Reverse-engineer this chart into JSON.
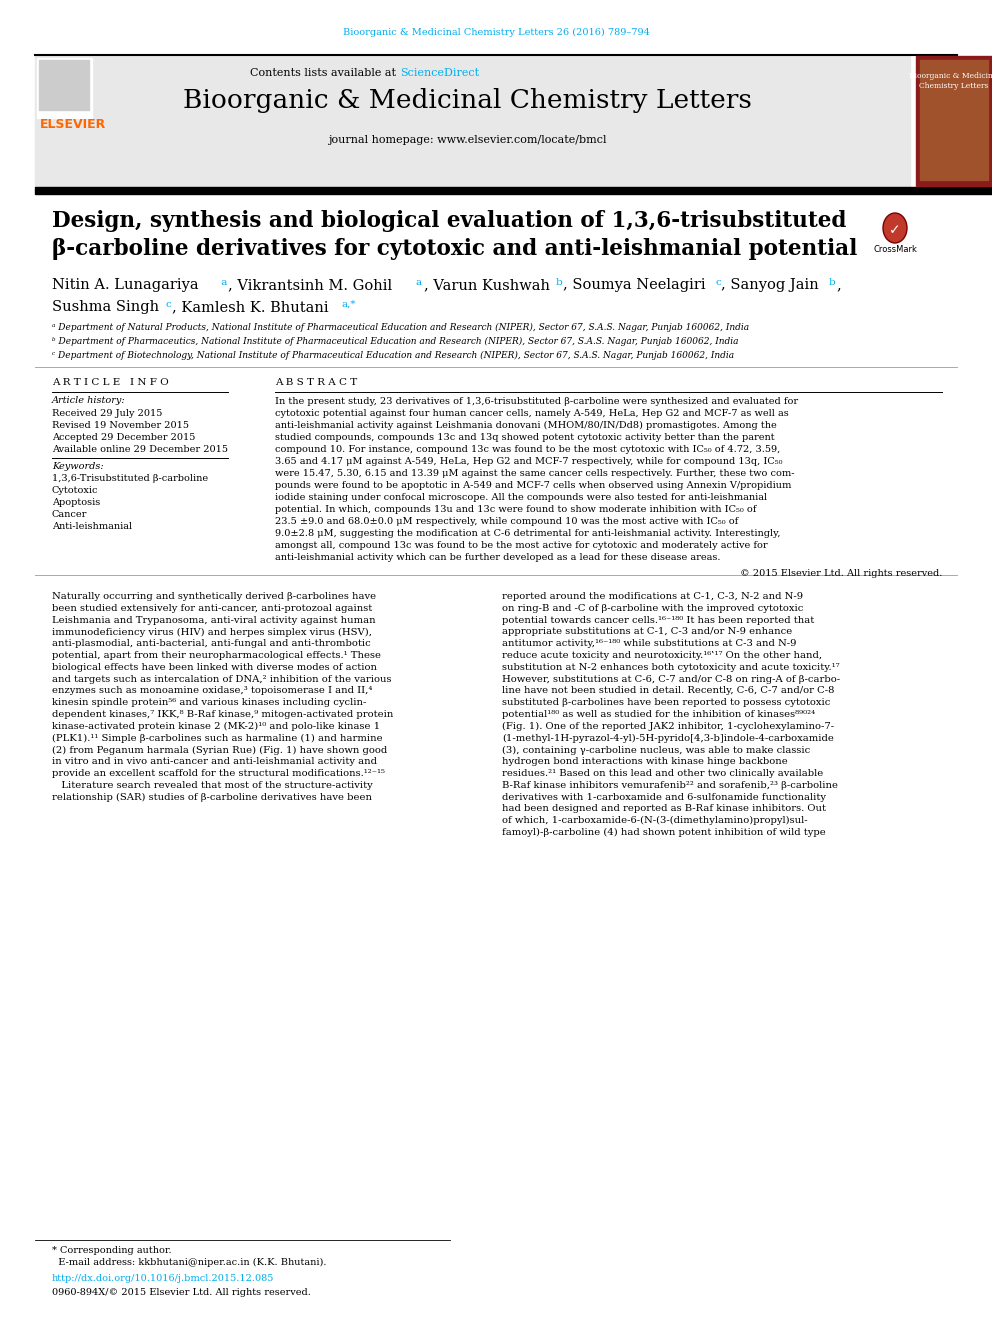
{
  "journal_ref": "Bioorganic & Medicinal Chemistry Letters 26 (2016) 789–794",
  "journal_ref_color": "#00AEEF",
  "contents_text": "Contents lists available at ",
  "sciencedirect_text": "ScienceDirect",
  "sciencedirect_color": "#00AEEF",
  "journal_name": "Bioorganic & Medicinal Chemistry Letters",
  "journal_homepage": "journal homepage: www.elsevier.com/locate/bmcl",
  "title_line1": "Design, synthesis and biological evaluation of 1,3,6-trisubstituted",
  "title_line2": "β-carboline derivatives for cytotoxic and anti-leishmanial potential",
  "affil_a": "ᵃ Department of Natural Products, National Institute of Pharmaceutical Education and Research (NIPER), Sector 67, S.A.S. Nagar, Punjab 160062, India",
  "affil_b": "ᵇ Department of Pharmaceutics, National Institute of Pharmaceutical Education and Research (NIPER), Sector 67, S.A.S. Nagar, Punjab 160062, India",
  "affil_c": "ᶜ Department of Biotechnology, National Institute of Pharmaceutical Education and Research (NIPER), Sector 67, S.A.S. Nagar, Punjab 160062, India",
  "article_info_title": "A R T I C L E   I N F O",
  "article_history_title": "Article history:",
  "received": "Received 29 July 2015",
  "revised": "Revised 19 November 2015",
  "accepted": "Accepted 29 December 2015",
  "available": "Available online 29 December 2015",
  "keywords_title": "Keywords:",
  "keyword1": "1,3,6-Trisubstituted β-carboline",
  "keyword2": "Cytotoxic",
  "keyword3": "Apoptosis",
  "keyword4": "Cancer",
  "keyword5": "Anti-leishmanial",
  "abstract_title": "A B S T R A C T",
  "abstract_text": "In the present study, 23 derivatives of 1,3,6-trisubstituted β-carboline were synthesized and evaluated for cytotoxic potential against four human cancer cells, namely A-549, HeLa, Hep G2 and MCF-7 as well as anti-leishmanial activity against Leishmania donovani (MHOM/80/IN/Dd8) promastigotes. Among the studied compounds, compounds 13c and 13q showed potent cytotoxic activity better than the parent compound 10. For instance, compound 13c was found to be the most cytotoxic with IC₅₀ of 4.72, 3.59, 3.65 and 4.17 μM against A-549, HeLa, Hep G2 and MCF-7 respectively, while for compound 13q, IC₅₀ were 15.47, 5.30, 6.15 and 13.39 μM against the same cancer cells respectively. Further, these two compounds were found to be apoptotic in A-549 and MCF-7 cells when observed using Annexin V/propidium iodide staining under confocal microscope. All the compounds were also tested for anti-leishmanial potential. In which, compounds 13u and 13c were found to show moderate inhibition with IC₅₀ of 23.5 ±9.0 and 68.0±0.0 μM respectively, while compound 10 was the most active with IC₅₀ of 9.0±2.8 μM, suggesting the modification at C-6 detrimental for anti-leishmanial activity. Interestingly, amongst all, compound 13c was found to be the most active for cytotoxic and moderately active for anti-leishmanial activity which can be further developed as a lead for these disease areas.",
  "copyright": "© 2015 Elsevier Ltd. All rights reserved.",
  "abstract_lines": [
    "In the present study, 23 derivatives of 1,3,6-trisubstituted β-carboline were synthesized and evaluated for",
    "cytotoxic potential against four human cancer cells, namely A-549, HeLa, Hep G2 and MCF-7 as well as",
    "anti-leishmanial activity against Leishmania donovani (MHOM/80/IN/Dd8) promastigotes. Among the",
    "studied compounds, compounds 13c and 13q showed potent cytotoxic activity better than the parent",
    "compound 10. For instance, compound 13c was found to be the most cytotoxic with IC₅₀ of 4.72, 3.59,",
    "3.65 and 4.17 μM against A-549, HeLa, Hep G2 and MCF-7 respectively, while for compound 13q, IC₅₀",
    "were 15.47, 5.30, 6.15 and 13.39 μM against the same cancer cells respectively. Further, these two com-",
    "pounds were found to be apoptotic in A-549 and MCF-7 cells when observed using Annexin V/propidium",
    "iodide staining under confocal microscope. All the compounds were also tested for anti-leishmanial",
    "potential. In which, compounds 13u and 13c were found to show moderate inhibition with IC₅₀ of",
    "23.5 ±9.0 and 68.0±0.0 μM respectively, while compound 10 was the most active with IC₅₀ of",
    "9.0±2.8 μM, suggesting the modification at C-6 detrimental for anti-leishmanial activity. Interestingly,",
    "amongst all, compound 13c was found to be the most active for cytotoxic and moderately active for",
    "anti-leishmanial activity which can be further developed as a lead for these disease areas."
  ],
  "body_col1_lines": [
    "Naturally occurring and synthetically derived β-carbolines have",
    "been studied extensively for anti-cancer, anti-protozoal against",
    "Leishmania and Trypanosoma, anti-viral activity against human",
    "immunodeficiency virus (HIV) and herpes simplex virus (HSV),",
    "anti-plasmodial, anti-bacterial, anti-fungal and anti-thrombotic",
    "potential, apart from their neuropharmacological effects.¹ These",
    "biological effects have been linked with diverse modes of action",
    "and targets such as intercalation of DNA,² inhibition of the various",
    "enzymes such as monoamine oxidase,³ topoisomerase I and II,⁴",
    "kinesin spindle protein⁵⁶ and various kinases including cyclin-",
    "dependent kinases,⁷ IKK,⁸ B-Raf kinase,⁹ mitogen-activated protein",
    "kinase-activated protein kinase 2 (MK-2)¹⁰ and polo-like kinase 1",
    "(PLK1).¹¹ Simple β-carbolines such as harmaline (1) and harmine",
    "(2) from Peganum harmala (Syrian Rue) (Fig. 1) have shown good",
    "in vitro and in vivo anti-cancer and anti-leishmanial activity and",
    "provide an excellent scaffold for the structural modifications.¹²⁻¹⁵",
    "   Literature search revealed that most of the structure-activity",
    "relationship (SAR) studies of β-carboline derivatives have been"
  ],
  "body_col2_lines": [
    "reported around the modifications at C-1, C-3, N-2 and N-9",
    "on ring-B and -C of β-carboline with the improved cytotoxic",
    "potential towards cancer cells.¹⁶⁻¹⁸⁰ It has been reported that",
    "appropriate substitutions at C-1, C-3 and/or N-9 enhance",
    "antitumor activity,¹⁶⁻¹⁸⁰ while substitutions at C-3 and N-9",
    "reduce acute toxicity and neurotoxicity.¹⁶‛¹⁷ On the other hand,",
    "substitution at N-2 enhances both cytotoxicity and acute toxicity.¹⁷",
    "However, substitutions at C-6, C-7 and/or C-8 on ring-A of β-carbo-",
    "line have not been studied in detail. Recently, C-6, C-7 and/or C-8",
    "substituted β-carbolines have been reported to possess cytotoxic",
    "potential¹⁸⁰ as well as studied for the inhibition of kinases⁸⁹⁰²⁴",
    "(Fig. 1). One of the reported JAK2 inhibitor, 1-cyclohexylamino-7-",
    "(1-methyl-1H-pyrazol-4-yl)-5H-pyrido[4,3-b]indole-4-carboxamide",
    "(3), containing γ-carboline nucleus, was able to make classic",
    "hydrogen bond interactions with kinase hinge backbone",
    "residues.²¹ Based on this lead and other two clinically available",
    "B-Raf kinase inhibitors vemurafenib²² and sorafenib,²³ β-carboline",
    "derivatives with 1-carboxamide and 6-sulfonamide functionality",
    "had been designed and reported as B-Raf kinase inhibitors. Out",
    "of which, 1-carboxamide-6-(N-(3-(dimethylamino)propyl)sul-",
    "famoyl)-β-carboline (4) had shown potent inhibition of wild type"
  ],
  "footer_line1": "* Corresponding author.",
  "footer_line2": "  E-mail address: kkbhutani@niper.ac.in (K.K. Bhutani).",
  "doi_text": "http://dx.doi.org/10.1016/j.bmcl.2015.12.085",
  "issn_text": "0960-894X/© 2015 Elsevier Ltd. All rights reserved.",
  "bg_color": "#FFFFFF",
  "header_bg_color": "#E8E8E8",
  "journal_ref_color_cyan": "#00AEEF",
  "elsevier_orange": "#FF6600",
  "crossmark_red": "#C0392B"
}
